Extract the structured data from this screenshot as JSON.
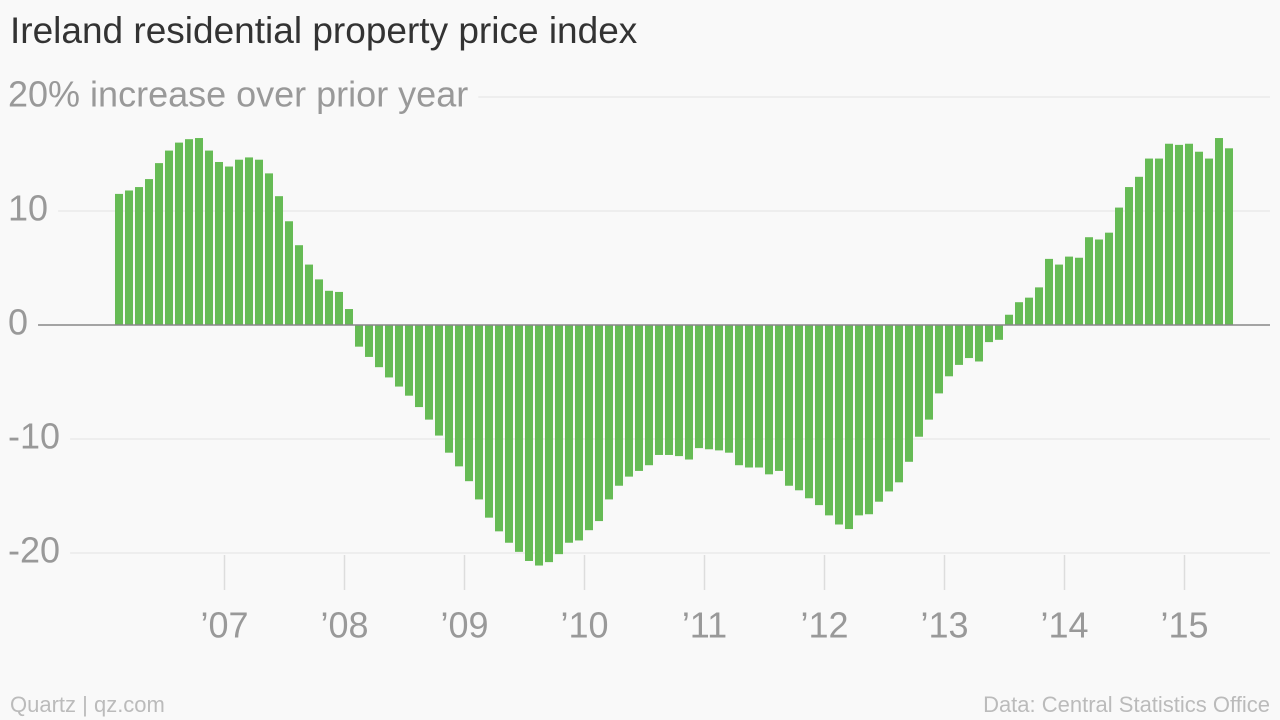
{
  "chart_data": {
    "type": "bar",
    "title": "Ireland residential property price index",
    "source": "Data: Central Statistics Office",
    "credit": "Quartz | qz.com",
    "color": "#66bb55",
    "categories": [
      null,
      null,
      null,
      null,
      null,
      null,
      null,
      null,
      null,
      null,
      null,
      "’07",
      null,
      null,
      null,
      null,
      null,
      null,
      null,
      null,
      null,
      null,
      null,
      "’08",
      null,
      null,
      null,
      null,
      null,
      null,
      null,
      null,
      null,
      null,
      null,
      "’09",
      null,
      null,
      null,
      null,
      null,
      null,
      null,
      null,
      null,
      null,
      null,
      "’10",
      null,
      null,
      null,
      null,
      null,
      null,
      null,
      null,
      null,
      null,
      null,
      "’11",
      null,
      null,
      null,
      null,
      null,
      null,
      null,
      null,
      null,
      null,
      null,
      "’12",
      null,
      null,
      null,
      null,
      null,
      null,
      null,
      null,
      null,
      null,
      null,
      "’13",
      null,
      null,
      null,
      null,
      null,
      null,
      null,
      null,
      null,
      null,
      null,
      "’14",
      null,
      null,
      null,
      null,
      null,
      null,
      null,
      null,
      null,
      null,
      null,
      "’15",
      null,
      null,
      null,
      null
    ],
    "values": [
      11.5,
      11.8,
      12.1,
      12.8,
      14.2,
      15.3,
      16.0,
      16.3,
      16.4,
      15.3,
      14.3,
      13.9,
      14.5,
      14.7,
      14.5,
      13.3,
      11.3,
      9.1,
      7.0,
      5.3,
      4.0,
      3.0,
      2.9,
      1.4,
      -1.9,
      -2.8,
      -3.7,
      -4.6,
      -5.4,
      -6.2,
      -7.2,
      -8.3,
      -9.7,
      -11.2,
      -12.4,
      -13.7,
      -15.3,
      -16.9,
      -18.1,
      -19.1,
      -19.9,
      -20.7,
      -21.1,
      -20.8,
      -20.1,
      -19.1,
      -18.9,
      -18.0,
      -17.2,
      -15.3,
      -14.1,
      -13.3,
      -12.8,
      -12.3,
      -11.4,
      -11.4,
      -11.5,
      -11.8,
      -10.8,
      -10.9,
      -11.0,
      -11.2,
      -12.3,
      -12.5,
      -12.5,
      -13.1,
      -12.8,
      -14.1,
      -14.5,
      -15.2,
      -15.8,
      -16.7,
      -17.5,
      -17.9,
      -16.7,
      -16.6,
      -15.5,
      -14.6,
      -13.8,
      -12.0,
      -9.8,
      -8.3,
      -6.0,
      -4.5,
      -3.5,
      -2.9,
      -3.2,
      -1.5,
      -1.3,
      0.9,
      2.0,
      2.4,
      3.3,
      5.8,
      5.3,
      6.0,
      5.9,
      7.7,
      7.5,
      8.1,
      10.3,
      12.1,
      13.0,
      14.6,
      14.6,
      15.9,
      15.8,
      15.9,
      15.2,
      14.6,
      16.4,
      15.5
    ],
    "ylim": [
      -23,
      20
    ],
    "yticks": [
      -20,
      -10,
      0,
      10,
      {
        "value": 20,
        "label": "20% increase over prior year"
      }
    ],
    "grid": true
  }
}
